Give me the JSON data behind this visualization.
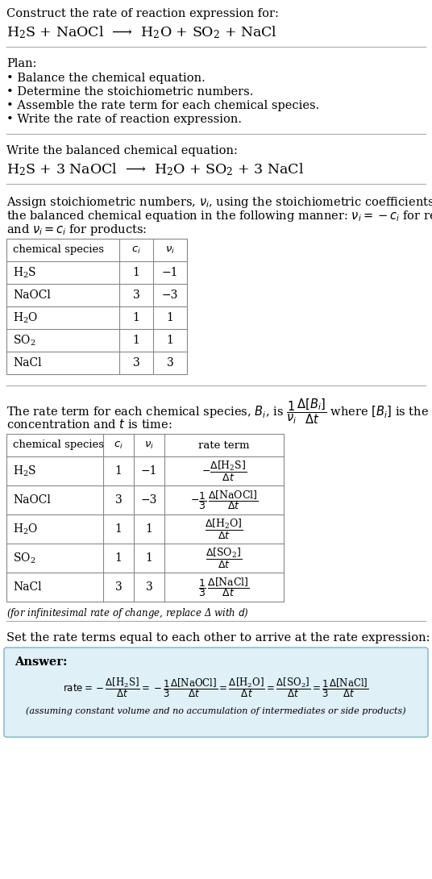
{
  "title_line1": "Construct the rate of reaction expression for:",
  "plan_header": "Plan:",
  "plan_items": [
    "• Balance the chemical equation.",
    "• Determine the stoichiometric numbers.",
    "• Assemble the rate term for each chemical species.",
    "• Write the rate of reaction expression."
  ],
  "balanced_header": "Write the balanced chemical equation:",
  "stoich_line1": "Assign stoichiometric numbers, $\\nu_i$, using the stoichiometric coefficients, $c_i$, from",
  "stoich_line2": "the balanced chemical equation in the following manner: $\\nu_i = -c_i$ for reactants",
  "stoich_line3": "and $\\nu_i = c_i$ for products:",
  "table1_rows": [
    [
      "$\\mathregular{H_2S}$",
      "1",
      "−1"
    ],
    [
      "NaOCl",
      "3",
      "−3"
    ],
    [
      "$\\mathregular{H_2O}$",
      "1",
      "1"
    ],
    [
      "$\\mathregular{SO_2}$",
      "1",
      "1"
    ],
    [
      "NaCl",
      "3",
      "3"
    ]
  ],
  "rate_line1": "The rate term for each chemical species, $B_i$, is",
  "rate_line2": "concentration and $t$ is time:",
  "infinitesimal_note": "(for infinitesimal rate of change, replace Δ with $d$)",
  "set_rate_text": "Set the rate terms equal to each other to arrive at the rate expression:",
  "answer_bg_color": "#dff0f7",
  "answer_border_color": "#8bbfcf",
  "assuming_note": "(assuming constant volume and no accumulation of intermediates or side products)",
  "separator_color": "#aaaaaa",
  "table_color": "#888888",
  "bg_color": "#ffffff"
}
